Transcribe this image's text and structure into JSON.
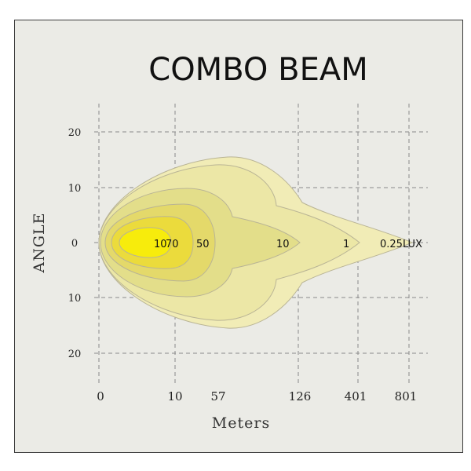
{
  "chart_data": {
    "type": "isolux",
    "title": "COMBO  BEAM",
    "xlabel": "Meters",
    "ylabel": "ANGLE",
    "x_ticks": [
      "0",
      "10",
      "57",
      "126",
      "401",
      "801"
    ],
    "y_ticks": [
      "20",
      "10",
      "0",
      "10",
      "20"
    ],
    "grid": true,
    "zones": [
      {
        "lux": "0.25LUX",
        "color": "#f1ecb6"
      },
      {
        "lux": "1",
        "color": "#ece7a6"
      },
      {
        "lux": "10",
        "color": "#e3de8a"
      },
      {
        "lux": "50",
        "color": "#e4d96a"
      },
      {
        "lux": "70",
        "color": "#ebdb3c"
      },
      {
        "lux": "10",
        "color": "#f7ec0c"
      }
    ]
  }
}
